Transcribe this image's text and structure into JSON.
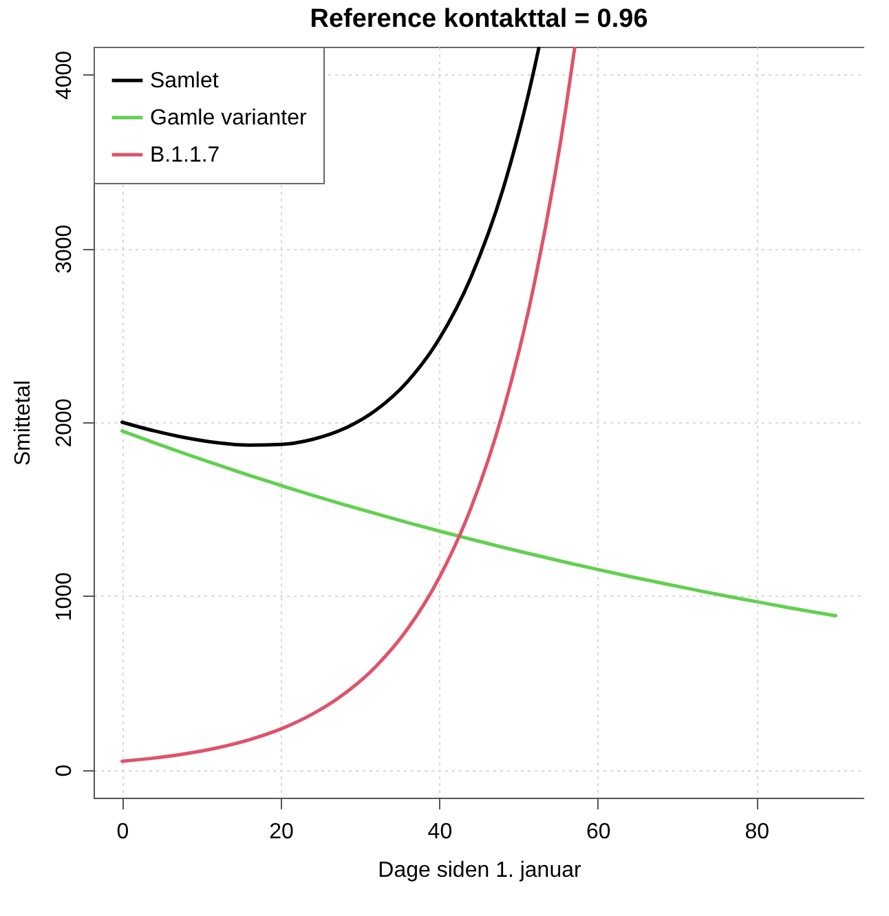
{
  "chart_data": {
    "type": "line",
    "title": "Reference kontakttal = 0.96",
    "xlabel": "Dage siden 1. januar",
    "ylabel": "Smittetal",
    "xlim": [
      -3.6,
      93.6
    ],
    "ylim": [
      -160,
      4160
    ],
    "xticks": [
      0,
      20,
      40,
      60,
      80
    ],
    "yticks": [
      0,
      1000,
      2000,
      3000,
      4000
    ],
    "grid": true,
    "legend": "top left",
    "series": [
      {
        "name": "Samlet",
        "color": "#000000",
        "x": [
          0,
          4,
          8,
          12,
          16,
          20,
          24,
          28,
          32,
          36,
          40,
          44,
          48,
          52,
          52.55
        ],
        "values": [
          2000,
          1951,
          1911,
          1882,
          1868,
          1872,
          1901,
          1963,
          2069,
          2234,
          2480,
          2834,
          3335,
          4037,
          4152
        ]
      },
      {
        "name": "Gamle varianter",
        "color": "#61d04f",
        "x": [
          0,
          4,
          8,
          12,
          16,
          20,
          24,
          28,
          32,
          36,
          40,
          44,
          48,
          52,
          56,
          60,
          64,
          68,
          72,
          76,
          80,
          84,
          88,
          90
        ],
        "values": [
          1950,
          1883,
          1818,
          1756,
          1695,
          1637,
          1580,
          1526,
          1474,
          1423,
          1374,
          1327,
          1281,
          1237,
          1194,
          1153,
          1113,
          1075,
          1038,
          1002,
          968,
          934,
          902,
          887
        ]
      },
      {
        "name": "B.1.1.7",
        "color": "#df536b",
        "x": [
          0,
          4,
          8,
          12,
          16,
          20,
          24,
          28,
          32,
          36,
          40,
          44,
          48,
          52,
          56,
          57.1
        ],
        "values": [
          50,
          68,
          93,
          127,
          173,
          235,
          321,
          437,
          595,
          811,
          1106,
          1507,
          2054,
          2800,
          3816,
          4160
        ]
      }
    ]
  }
}
